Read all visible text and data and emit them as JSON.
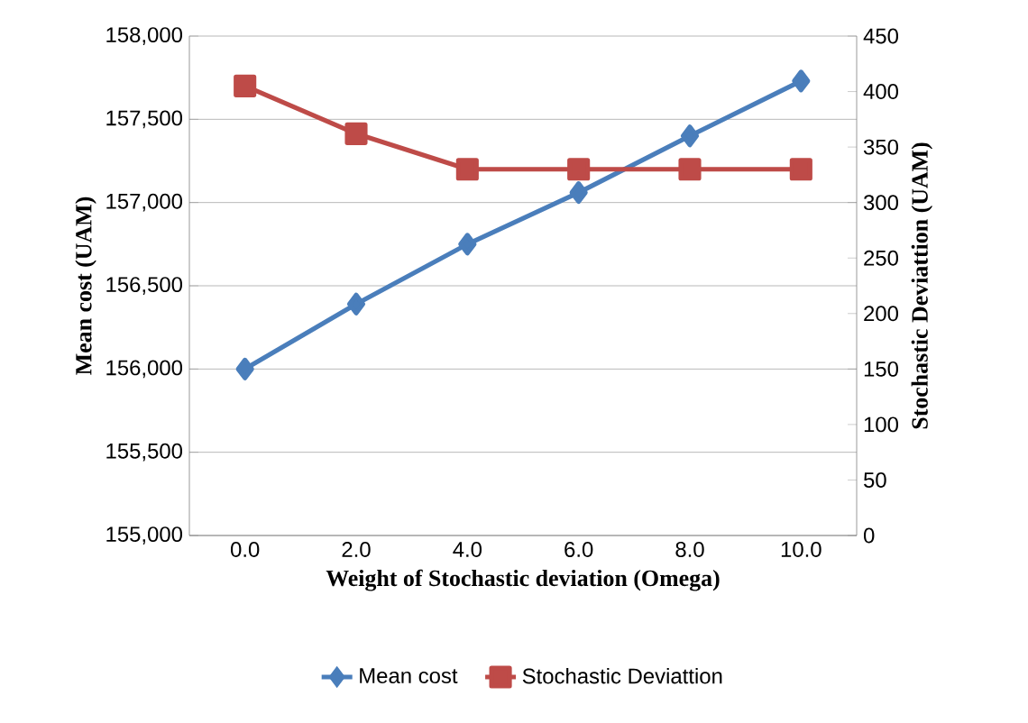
{
  "chart_data": {
    "type": "line",
    "xlabel": "Weight of Stochastic deviation (Omega)",
    "ylabel": "Mean cost (UAM)",
    "y2label": "Stochastic Deviattion (UAM)",
    "categories": [
      "0.0",
      "2.0",
      "4.0",
      "6.0",
      "8.0",
      "10.0"
    ],
    "series": [
      {
        "name": "Mean cost",
        "color": "#4a7ebb",
        "marker": "diamond",
        "axis": "y",
        "values": [
          156000,
          156390,
          156750,
          157060,
          157400,
          157730
        ]
      },
      {
        "name": "Stochastic Deviattion",
        "color": "#be4b48",
        "marker": "square",
        "axis": "y2",
        "values": [
          405,
          362,
          330,
          330,
          330,
          330
        ]
      }
    ],
    "ylim": [
      155000,
      158000
    ],
    "yticks": [
      {
        "value": 155000,
        "label": "155,000"
      },
      {
        "value": 155500,
        "label": "155,500"
      },
      {
        "value": 156000,
        "label": "156,000"
      },
      {
        "value": 156500,
        "label": "156,500"
      },
      {
        "value": 157000,
        "label": "157,000"
      },
      {
        "value": 157500,
        "label": "157,500"
      },
      {
        "value": 158000,
        "label": "158,000"
      }
    ],
    "y2lim": [
      0,
      450
    ],
    "y2ticks": [
      0,
      50,
      100,
      150,
      200,
      250,
      300,
      350,
      400,
      450
    ],
    "grid": "y",
    "legend": "bottom",
    "line_style": "solid"
  }
}
